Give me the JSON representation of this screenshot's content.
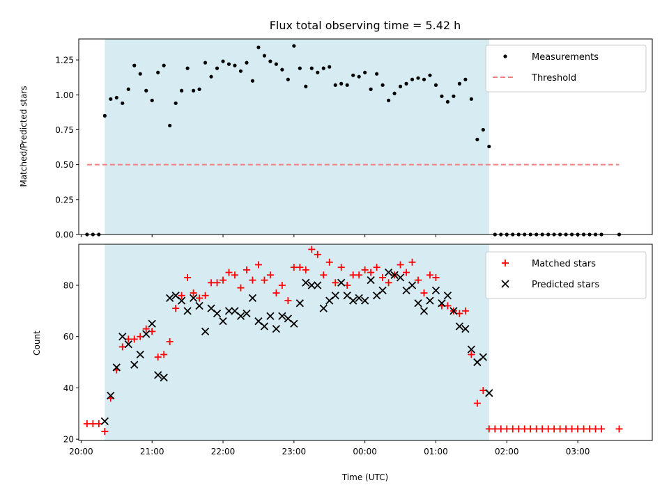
{
  "chart_data": [
    {
      "type": "scatter",
      "title": "Flux total observing time = 5.42 h",
      "xlabel": "",
      "ylabel": "Matched/Predicted stars",
      "ylim": [
        0.0,
        1.4
      ],
      "xlim": [
        "19:58",
        "04:03"
      ],
      "shaded_range": [
        "20:20",
        "01:45"
      ],
      "yticks": [
        "0.00",
        "0.25",
        "0.50",
        "0.75",
        "1.00",
        "1.25"
      ],
      "grid": false,
      "legend_position": "top-right",
      "legend": [
        "Measurements",
        "Threshold"
      ],
      "colors": {
        "measurements": "#000000",
        "threshold": "#f08080",
        "shade": "#add8e6"
      },
      "threshold": {
        "value": 0.5,
        "x_start": "20:05",
        "x_end": "03:35"
      },
      "series": [
        {
          "name": "Measurements",
          "points": [
            [
              "20:05",
              0
            ],
            [
              "20:10",
              0
            ],
            [
              "20:15",
              0
            ],
            [
              "20:20",
              0.85
            ],
            [
              "20:25",
              0.97
            ],
            [
              "20:30",
              0.98
            ],
            [
              "20:35",
              0.94
            ],
            [
              "20:40",
              1.04
            ],
            [
              "20:45",
              1.21
            ],
            [
              "20:50",
              1.15
            ],
            [
              "20:55",
              1.03
            ],
            [
              "21:00",
              0.96
            ],
            [
              "21:05",
              1.16
            ],
            [
              "21:10",
              1.21
            ],
            [
              "21:15",
              0.78
            ],
            [
              "21:20",
              0.94
            ],
            [
              "21:25",
              1.03
            ],
            [
              "21:30",
              1.19
            ],
            [
              "21:35",
              1.03
            ],
            [
              "21:40",
              1.04
            ],
            [
              "21:45",
              1.23
            ],
            [
              "21:50",
              1.13
            ],
            [
              "21:55",
              1.19
            ],
            [
              "22:00",
              1.24
            ],
            [
              "22:05",
              1.22
            ],
            [
              "22:10",
              1.21
            ],
            [
              "22:15",
              1.17
            ],
            [
              "22:20",
              1.23
            ],
            [
              "22:25",
              1.1
            ],
            [
              "22:30",
              1.34
            ],
            [
              "22:35",
              1.28
            ],
            [
              "22:40",
              1.24
            ],
            [
              "22:45",
              1.22
            ],
            [
              "22:50",
              1.18
            ],
            [
              "22:55",
              1.11
            ],
            [
              "23:00",
              1.35
            ],
            [
              "23:05",
              1.19
            ],
            [
              "23:10",
              1.06
            ],
            [
              "23:15",
              1.19
            ],
            [
              "23:20",
              1.16
            ],
            [
              "23:25",
              1.19
            ],
            [
              "23:30",
              1.2
            ],
            [
              "23:35",
              1.07
            ],
            [
              "23:40",
              1.08
            ],
            [
              "23:45",
              1.07
            ],
            [
              "23:50",
              1.14
            ],
            [
              "23:55",
              1.13
            ],
            [
              "00:00",
              1.16
            ],
            [
              "00:05",
              1.04
            ],
            [
              "00:10",
              1.15
            ],
            [
              "00:15",
              1.07
            ],
            [
              "00:20",
              0.96
            ],
            [
              "00:25",
              1.01
            ],
            [
              "00:30",
              1.06
            ],
            [
              "00:35",
              1.08
            ],
            [
              "00:40",
              1.11
            ],
            [
              "00:45",
              1.12
            ],
            [
              "00:50",
              1.11
            ],
            [
              "00:55",
              1.14
            ],
            [
              "01:00",
              1.07
            ],
            [
              "01:05",
              0.99
            ],
            [
              "01:10",
              0.95
            ],
            [
              "01:15",
              0.99
            ],
            [
              "01:20",
              1.08
            ],
            [
              "01:25",
              1.11
            ],
            [
              "01:30",
              0.97
            ],
            [
              "01:35",
              0.68
            ],
            [
              "01:40",
              0.75
            ],
            [
              "01:45",
              0.63
            ],
            [
              "01:50",
              0
            ],
            [
              "01:55",
              0
            ],
            [
              "02:00",
              0
            ],
            [
              "02:05",
              0
            ],
            [
              "02:10",
              0
            ],
            [
              "02:15",
              0
            ],
            [
              "02:20",
              0
            ],
            [
              "02:25",
              0
            ],
            [
              "02:30",
              0
            ],
            [
              "02:35",
              0
            ],
            [
              "02:40",
              0
            ],
            [
              "02:45",
              0
            ],
            [
              "02:50",
              0
            ],
            [
              "02:55",
              0
            ],
            [
              "03:00",
              0
            ],
            [
              "03:05",
              0
            ],
            [
              "03:10",
              0
            ],
            [
              "03:15",
              0
            ],
            [
              "03:20",
              0
            ],
            [
              "03:35",
              0
            ]
          ]
        }
      ]
    },
    {
      "type": "scatter",
      "title": "",
      "xlabel": "Time (UTC)",
      "ylabel": "Count",
      "ylim": [
        19.5,
        96
      ],
      "xlim": [
        "19:58",
        "04:03"
      ],
      "shaded_range": [
        "20:20",
        "01:45"
      ],
      "xticks": [
        "20:00",
        "21:00",
        "22:00",
        "23:00",
        "00:00",
        "01:00",
        "02:00",
        "03:00"
      ],
      "yticks": [
        "20",
        "40",
        "60",
        "80"
      ],
      "grid": false,
      "legend_position": "top-right",
      "legend": [
        "Matched stars",
        "Predicted stars"
      ],
      "colors": {
        "matched": "#ff0000",
        "predicted": "#000000",
        "shade": "#add8e6"
      },
      "series": [
        {
          "name": "Matched stars",
          "points": [
            [
              "20:05",
              26
            ],
            [
              "20:10",
              26
            ],
            [
              "20:15",
              26
            ],
            [
              "20:20",
              23
            ],
            [
              "20:25",
              36
            ],
            [
              "20:30",
              47
            ],
            [
              "20:35",
              56
            ],
            [
              "20:40",
              59
            ],
            [
              "20:45",
              59
            ],
            [
              "20:50",
              60
            ],
            [
              "20:55",
              63
            ],
            [
              "21:00",
              62
            ],
            [
              "21:05",
              52
            ],
            [
              "21:10",
              53
            ],
            [
              "21:15",
              58
            ],
            [
              "21:20",
              71
            ],
            [
              "21:25",
              76
            ],
            [
              "21:30",
              83
            ],
            [
              "21:35",
              77
            ],
            [
              "21:40",
              75
            ],
            [
              "21:45",
              76
            ],
            [
              "21:50",
              81
            ],
            [
              "21:55",
              81
            ],
            [
              "22:00",
              82
            ],
            [
              "22:05",
              85
            ],
            [
              "22:10",
              84
            ],
            [
              "22:15",
              79
            ],
            [
              "22:20",
              86
            ],
            [
              "22:25",
              82
            ],
            [
              "22:30",
              88
            ],
            [
              "22:35",
              82
            ],
            [
              "22:40",
              84
            ],
            [
              "22:45",
              77
            ],
            [
              "22:50",
              80
            ],
            [
              "22:55",
              74
            ],
            [
              "23:00",
              87
            ],
            [
              "23:05",
              87
            ],
            [
              "23:10",
              86
            ],
            [
              "23:15",
              94
            ],
            [
              "23:20",
              92
            ],
            [
              "23:25",
              84
            ],
            [
              "23:30",
              89
            ],
            [
              "23:35",
              81
            ],
            [
              "23:40",
              87
            ],
            [
              "23:45",
              80
            ],
            [
              "23:50",
              84
            ],
            [
              "23:55",
              84
            ],
            [
              "00:00",
              86
            ],
            [
              "00:05",
              85
            ],
            [
              "00:10",
              87
            ],
            [
              "00:15",
              83
            ],
            [
              "00:20",
              81
            ],
            [
              "00:25",
              84
            ],
            [
              "00:30",
              88
            ],
            [
              "00:35",
              85
            ],
            [
              "00:40",
              89
            ],
            [
              "00:45",
              82
            ],
            [
              "00:50",
              77
            ],
            [
              "00:55",
              84
            ],
            [
              "01:00",
              83
            ],
            [
              "01:05",
              72
            ],
            [
              "01:10",
              72
            ],
            [
              "01:15",
              70
            ],
            [
              "01:20",
              69
            ],
            [
              "01:25",
              70
            ],
            [
              "01:30",
              53
            ],
            [
              "01:35",
              34
            ],
            [
              "01:40",
              39
            ],
            [
              "01:45",
              24
            ],
            [
              "01:50",
              24
            ],
            [
              "01:55",
              24
            ],
            [
              "02:00",
              24
            ],
            [
              "02:05",
              24
            ],
            [
              "02:10",
              24
            ],
            [
              "02:15",
              24
            ],
            [
              "02:20",
              24
            ],
            [
              "02:25",
              24
            ],
            [
              "02:30",
              24
            ],
            [
              "02:35",
              24
            ],
            [
              "02:40",
              24
            ],
            [
              "02:45",
              24
            ],
            [
              "02:50",
              24
            ],
            [
              "02:55",
              24
            ],
            [
              "03:00",
              24
            ],
            [
              "03:05",
              24
            ],
            [
              "03:10",
              24
            ],
            [
              "03:15",
              24
            ],
            [
              "03:20",
              24
            ],
            [
              "03:35",
              24
            ]
          ]
        },
        {
          "name": "Predicted stars",
          "points": [
            [
              "20:20",
              27
            ],
            [
              "20:25",
              37
            ],
            [
              "20:30",
              48
            ],
            [
              "20:35",
              60
            ],
            [
              "20:40",
              57
            ],
            [
              "20:45",
              49
            ],
            [
              "20:50",
              53
            ],
            [
              "20:55",
              61
            ],
            [
              "21:00",
              65
            ],
            [
              "21:05",
              45
            ],
            [
              "21:10",
              44
            ],
            [
              "21:15",
              75
            ],
            [
              "21:20",
              76
            ],
            [
              "21:25",
              74
            ],
            [
              "21:30",
              70
            ],
            [
              "21:35",
              75
            ],
            [
              "21:40",
              72
            ],
            [
              "21:45",
              62
            ],
            [
              "21:50",
              71
            ],
            [
              "21:55",
              69
            ],
            [
              "22:00",
              66
            ],
            [
              "22:05",
              70
            ],
            [
              "22:10",
              70
            ],
            [
              "22:15",
              68
            ],
            [
              "22:20",
              69
            ],
            [
              "22:25",
              75
            ],
            [
              "22:30",
              66
            ],
            [
              "22:35",
              64
            ],
            [
              "22:40",
              68
            ],
            [
              "22:45",
              63
            ],
            [
              "22:50",
              68
            ],
            [
              "22:55",
              67
            ],
            [
              "23:00",
              65
            ],
            [
              "23:05",
              73
            ],
            [
              "23:10",
              81
            ],
            [
              "23:15",
              80
            ],
            [
              "23:20",
              80
            ],
            [
              "23:25",
              71
            ],
            [
              "23:30",
              74
            ],
            [
              "23:35",
              76
            ],
            [
              "23:40",
              81
            ],
            [
              "23:45",
              76
            ],
            [
              "23:50",
              74
            ],
            [
              "23:55",
              75
            ],
            [
              "00:00",
              74
            ],
            [
              "00:05",
              82
            ],
            [
              "00:10",
              76
            ],
            [
              "00:15",
              78
            ],
            [
              "00:20",
              85
            ],
            [
              "00:25",
              84
            ],
            [
              "00:30",
              83
            ],
            [
              "00:35",
              78
            ],
            [
              "00:40",
              80
            ],
            [
              "00:45",
              73
            ],
            [
              "00:50",
              70
            ],
            [
              "00:55",
              74
            ],
            [
              "01:00",
              78
            ],
            [
              "01:05",
              73
            ],
            [
              "01:10",
              76
            ],
            [
              "01:15",
              70
            ],
            [
              "01:20",
              64
            ],
            [
              "01:25",
              63
            ],
            [
              "01:30",
              55
            ],
            [
              "01:35",
              50
            ],
            [
              "01:40",
              52
            ],
            [
              "01:45",
              38
            ]
          ]
        }
      ]
    }
  ]
}
